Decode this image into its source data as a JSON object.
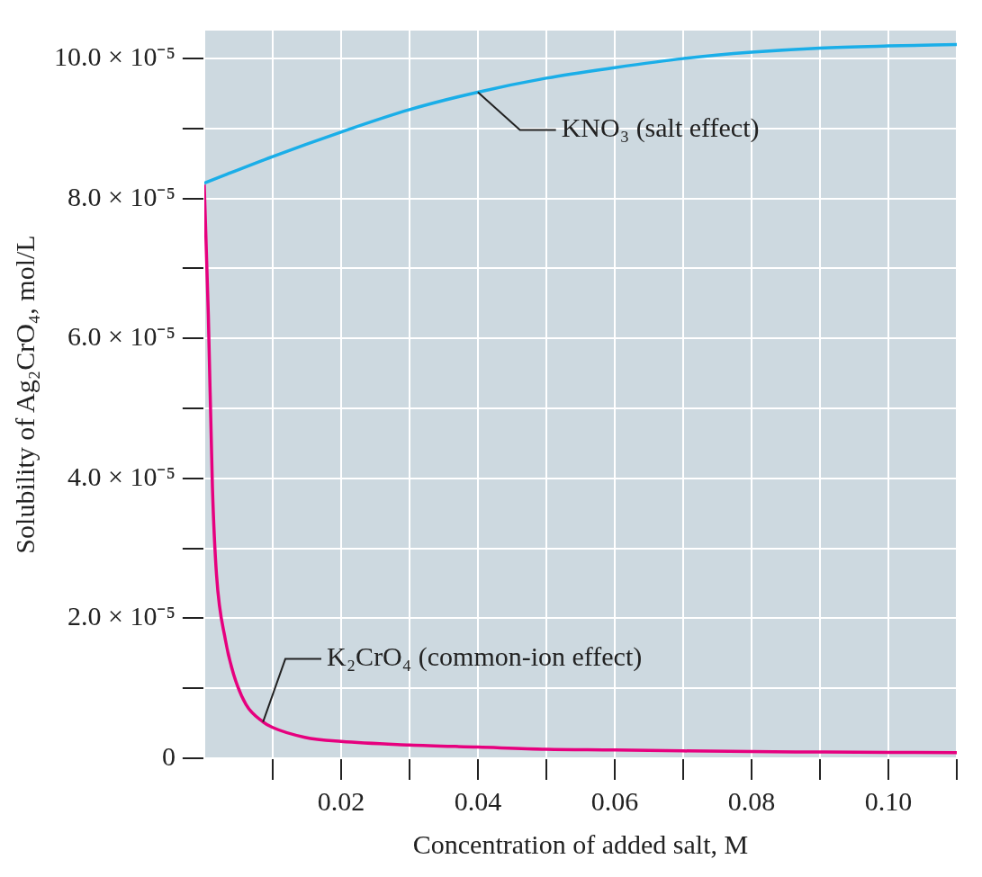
{
  "chart_data": {
    "type": "line",
    "xlabel": "Concentration of added salt, M",
    "ylabel": "Solubility of Ag₂CrO₄, mol/L",
    "xlim": [
      0,
      0.11
    ],
    "xticks": [
      {
        "value": 0.01,
        "label": null
      },
      0.02,
      {
        "value": 0.03,
        "label": null
      },
      0.04,
      {
        "value": 0.05,
        "label": null
      },
      0.06,
      {
        "value": 0.07,
        "label": null
      },
      0.08,
      {
        "value": 0.09,
        "label": null
      },
      {
        "value": 0.1,
        "label": "0.10"
      },
      {
        "value": 0.11,
        "label": null
      }
    ],
    "ylim": [
      0,
      0.000104
    ],
    "yticks": [
      0,
      {
        "value": 1e-05,
        "label": null
      },
      {
        "value": 2e-05,
        "label": "2.0 × 10⁻⁵"
      },
      {
        "value": 3e-05,
        "label": null
      },
      {
        "value": 4e-05,
        "label": "4.0 × 10⁻⁵"
      },
      {
        "value": 5e-05,
        "label": null
      },
      {
        "value": 6e-05,
        "label": "6.0 × 10⁻⁵"
      },
      {
        "value": 7e-05,
        "label": null
      },
      {
        "value": 8e-05,
        "label": "8.0 × 10⁻⁵"
      },
      {
        "value": 9e-05,
        "label": null
      },
      {
        "value": 0.0001,
        "label": "10.0 × 10⁻⁵"
      }
    ],
    "grid": true,
    "legend": false,
    "marker": "none",
    "line_style": "solid",
    "series": [
      {
        "name": "KNO₃ (salt effect)",
        "color": "#1aaee8",
        "x": [
          0,
          0.01,
          0.02,
          0.03,
          0.04,
          0.05,
          0.06,
          0.07,
          0.08,
          0.09,
          0.1,
          0.11
        ],
        "values": [
          8.22e-05,
          8.6e-05,
          8.95e-05,
          9.27e-05,
          9.52e-05,
          9.72e-05,
          9.87e-05,
          0.0001,
          0.0001009,
          0.0001015,
          0.0001018,
          0.000102
        ]
      },
      {
        "name": "K₂CrO₄ (common-ion effect)",
        "color": "#e6007e",
        "x": [
          0,
          0.0006,
          0.0012,
          0.0018,
          0.0031,
          0.0043,
          0.0061,
          0.0086,
          0.01,
          0.0147,
          0.02,
          0.03,
          0.04,
          0.05,
          0.06,
          0.07,
          0.08,
          0.09,
          0.1,
          0.11
        ],
        "values": [
          8.2e-05,
          6.34e-05,
          3.88e-05,
          2.62e-05,
          1.69e-05,
          1.2e-05,
          7.7e-06,
          5.2e-06,
          4.4e-06,
          3e-06,
          2.4e-06,
          1.9e-06,
          1.6e-06,
          1.3e-06,
          1.2e-06,
          1.05e-06,
          9.5e-07,
          9e-07,
          8.5e-07,
          8e-07
        ]
      }
    ]
  }
}
